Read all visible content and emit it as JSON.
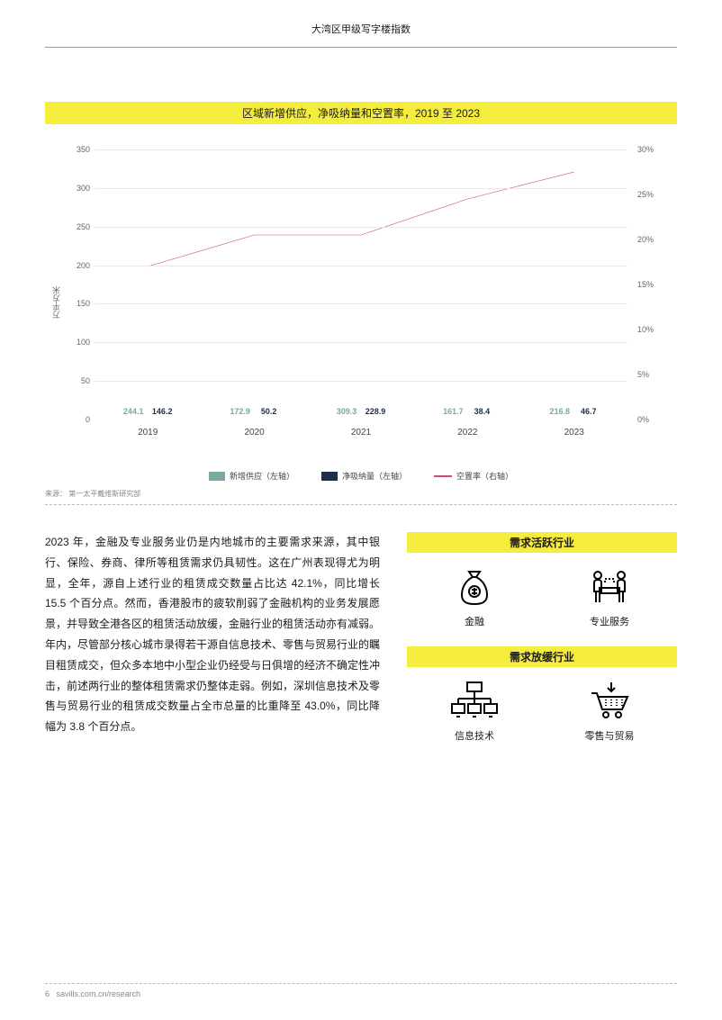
{
  "header": {
    "title": "大湾区甲级写字楼指数"
  },
  "chart": {
    "title": "区域新增供应，净吸纳量和空置率，2019 至 2023",
    "type": "grouped-bar-with-line",
    "categories": [
      "2019",
      "2020",
      "2021",
      "2022",
      "2023"
    ],
    "series": {
      "supply": {
        "label": "新增供应（左轴）",
        "values": [
          244.1,
          172.9,
          309.3,
          161.7,
          216.8
        ],
        "color": "#7aa9a3"
      },
      "absorption": {
        "label": "净吸纳量（左轴）",
        "values": [
          146.2,
          50.2,
          228.9,
          38.4,
          46.7
        ],
        "color": "#1f2e4a"
      },
      "vacancy": {
        "label": "空置率（右轴）",
        "values_pct": [
          17.0,
          20.5,
          20.5,
          24.5,
          27.5
        ],
        "color": "#c94a7a"
      }
    },
    "left_axis": {
      "label": "万平方米",
      "min": 0,
      "max": 350,
      "step": 50
    },
    "right_axis": {
      "min": 0,
      "max": 30,
      "step": 5,
      "suffix": "%"
    },
    "background_color": "#ffffff",
    "grid_color": "#e8e8e8",
    "title_bg": "#f5ed3d",
    "source": "来源： 第一太平戴维斯研究部"
  },
  "body_text": "2023 年，金融及专业服务业仍是内地城市的主要需求来源，其中银行、保险、券商、律所等租赁需求仍具韧性。这在广州表现得尤为明显，全年，源自上述行业的租赁成交数量占比达 42.1%，同比增长 15.5 个百分点。然而，香港股市的疲软削弱了金融机构的业务发展愿景，并导致全港各区的租赁活动放缓，金融行业的租赁活动亦有减弱。年内，尽管部分核心城市录得若干源自信息技术、零售与贸易行业的瞩目租赁成交，但众多本地中小型企业仍经受与日俱增的经济不确定性冲击，前述两行业的整体租赁需求仍整体走弱。例如，深圳信息技术及零售与贸易行业的租赁成交数量占全市总量的比重降至 43.0%，同比降幅为 3.8 个百分点。",
  "sectors": {
    "active": {
      "title": "需求活跃行业",
      "items": [
        "金融",
        "专业服务"
      ]
    },
    "slowing": {
      "title": "需求放缓行业",
      "items": [
        "信息技术",
        "零售与贸易"
      ]
    },
    "band_bg": "#f5ed3d"
  },
  "footer": {
    "page": "6",
    "url": "savills.com.cn/research"
  }
}
